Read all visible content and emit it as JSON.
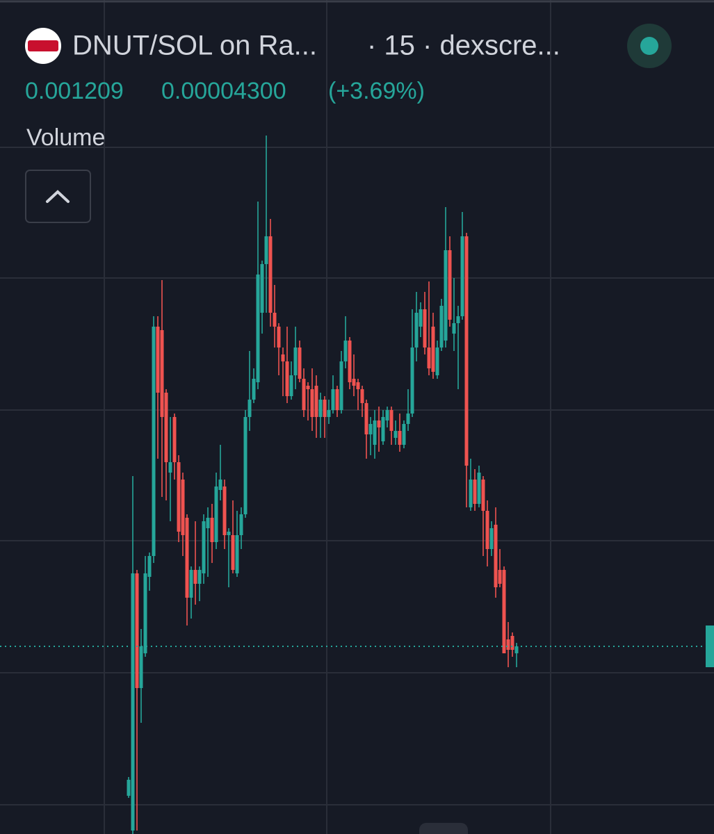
{
  "header": {
    "title": "DNUT/SOL on Ra...",
    "subtitle": "· 15 · dexscre...",
    "price": 0.001209,
    "change": "0.00004300",
    "change_pct": "(+3.69%)",
    "indicator": "Volume"
  },
  "chart_data": {
    "type": "candlestick",
    "open": [
      0.000779,
      0.000679,
      0.001419,
      0.001089,
      0.001189,
      0.001409,
      0.001469,
      0.002129,
      0.002119,
      0.001939,
      0.001709,
      0.001869,
      0.001739,
      0.001689,
      0.001579,
      0.001349,
      0.001429,
      0.001389,
      0.001419,
      0.001549,
      0.001579,
      0.001509,
      0.001659,
      0.001669,
      0.001529,
      0.001529,
      0.001419,
      0.001529,
      0.001589,
      0.001869,
      0.001919,
      0.001969,
      0.002169,
      0.002309,
      0.002389,
      0.002169,
      0.002129,
      0.002049,
      0.002029,
      0.001929,
      0.001989,
      0.002069,
      0.001979,
      0.001959,
      0.001949,
      0.001959,
      0.001869,
      0.001919,
      0.001869,
      0.001889,
      0.001949,
      0.001889,
      0.002029,
      0.002089,
      0.001979,
      0.001969,
      0.001949,
      0.001909,
      0.001819,
      0.001789,
      0.001859,
      0.001799,
      0.001859,
      0.001889,
      0.001809,
      0.001829,
      0.001789,
      0.001849,
      0.001879,
      0.002069,
      0.002129,
      0.002179,
      0.002069,
      0.002129,
      0.001989,
      0.002069,
      0.002089,
      0.002349,
      0.002109,
      0.002139,
      0.002159,
      0.002389,
      0.001609,
      0.001689,
      0.001619,
      0.001689,
      0.001599,
      0.001489,
      0.001559,
      0.001429,
      0.001429,
      0.001229,
      0.001239,
      0.001189
    ],
    "high": [
      0.000833,
      0.001699,
      0.001429,
      0.001259,
      0.001469,
      0.001479,
      0.002159,
      0.002159,
      0.002263,
      0.001949,
      0.001869,
      0.001879,
      0.001759,
      0.001709,
      0.001589,
      0.001439,
      0.001569,
      0.001439,
      0.001589,
      0.001609,
      0.001619,
      0.001709,
      0.001789,
      0.001689,
      0.001549,
      0.001629,
      0.001599,
      0.001609,
      0.001889,
      0.002059,
      0.002009,
      0.002489,
      0.002319,
      0.002679,
      0.002439,
      0.002249,
      0.002139,
      0.002069,
      0.002129,
      0.002029,
      0.002129,
      0.002089,
      0.002009,
      0.001969,
      0.002009,
      0.001989,
      0.001939,
      0.001929,
      0.001919,
      0.001989,
      0.001959,
      0.002059,
      0.002159,
      0.002099,
      0.002049,
      0.001979,
      0.001959,
      0.001919,
      0.001869,
      0.001889,
      0.001899,
      0.001889,
      0.001899,
      0.001899,
      0.001859,
      0.001879,
      0.001859,
      0.001949,
      0.002179,
      0.002229,
      0.002199,
      0.002229,
      0.002259,
      0.002169,
      0.002089,
      0.002209,
      0.002473,
      0.002389,
      0.002269,
      0.002189,
      0.002459,
      0.002399,
      0.001749,
      0.001719,
      0.001729,
      0.001699,
      0.001629,
      0.001569,
      0.001609,
      0.001489,
      0.001439,
      0.001279,
      0.001249,
      0.001219
    ],
    "low": [
      0.000773,
      0.000669,
      0.000679,
      0.000989,
      0.001179,
      0.001369,
      0.001449,
      0.001749,
      0.001639,
      0.001629,
      0.001569,
      0.001689,
      0.001509,
      0.001469,
      0.001269,
      0.001289,
      0.001329,
      0.001339,
      0.001389,
      0.001409,
      0.001449,
      0.001489,
      0.001629,
      0.001489,
      0.001379,
      0.001419,
      0.001409,
      0.001489,
      0.001579,
      0.001829,
      0.001909,
      0.001949,
      0.002109,
      0.002169,
      0.002129,
      0.002069,
      0.001989,
      0.001929,
      0.001909,
      0.001919,
      0.001949,
      0.001969,
      0.001869,
      0.001859,
      0.001829,
      0.001809,
      0.001809,
      0.001809,
      0.001849,
      0.001879,
      0.001869,
      0.001879,
      0.002009,
      0.001949,
      0.001929,
      0.001889,
      0.001869,
      0.001749,
      0.001759,
      0.001749,
      0.001769,
      0.001789,
      0.001839,
      0.001789,
      0.001789,
      0.001769,
      0.001779,
      0.001829,
      0.001869,
      0.002029,
      0.002099,
      0.002049,
      0.001989,
      0.001979,
      0.001979,
      0.002059,
      0.002069,
      0.002129,
      0.002059,
      0.001949,
      0.002149,
      0.001609,
      0.001599,
      0.001599,
      0.001609,
      0.001469,
      0.001439,
      0.001469,
      0.001349,
      0.001379,
      0.001189,
      0.001149,
      0.001179,
      0.001149
    ],
    "close": [
      0.000825,
      0.001419,
      0.001089,
      0.001209,
      0.001419,
      0.001469,
      0.002129,
      0.001939,
      0.001869,
      0.001739,
      0.001739,
      0.001739,
      0.001539,
      0.001529,
      0.001349,
      0.001429,
      0.001389,
      0.001429,
      0.001569,
      0.001579,
      0.001509,
      0.001669,
      0.001689,
      0.001529,
      0.001539,
      0.001429,
      0.001529,
      0.001589,
      0.001869,
      0.001919,
      0.001979,
      0.002279,
      0.002309,
      0.002389,
      0.002169,
      0.002129,
      0.002069,
      0.002029,
      0.001929,
      0.001989,
      0.002069,
      0.001979,
      0.001889,
      0.001949,
      0.001869,
      0.001869,
      0.001919,
      0.001869,
      0.001889,
      0.001949,
      0.001889,
      0.002029,
      0.002089,
      0.001969,
      0.001959,
      0.001949,
      0.001909,
      0.001819,
      0.001849,
      0.001859,
      0.001839,
      0.001869,
      0.001889,
      0.001829,
      0.001829,
      0.001789,
      0.001849,
      0.001879,
      0.002069,
      0.002169,
      0.002179,
      0.002069,
      0.002009,
      0.001999,
      0.002069,
      0.002189,
      0.002349,
      0.002149,
      0.002139,
      0.002159,
      0.002389,
      0.001729,
      0.001689,
      0.001619,
      0.001709,
      0.001599,
      0.001489,
      0.001549,
      0.001379,
      0.001389,
      0.001189,
      0.001199,
      0.001199,
      0.001209
    ],
    "ylim": [
      0.000669,
      0.003069
    ],
    "up_color": "#26a69a",
    "down_color": "#ef5350"
  }
}
